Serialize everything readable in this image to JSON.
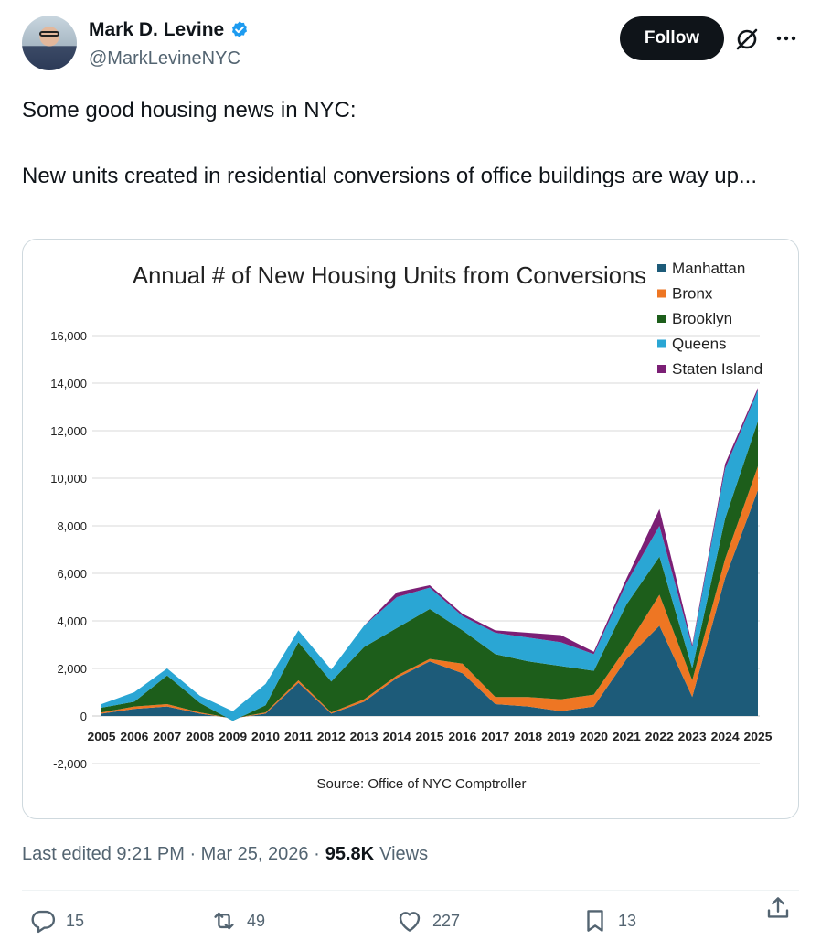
{
  "author": {
    "display_name": "Mark D. Levine",
    "handle": "@MarkLevineNYC",
    "verified": true,
    "verified_color": "#1d9bf0"
  },
  "header": {
    "follow_label": "Follow"
  },
  "tweet": {
    "line1": "Some good housing news in NYC:",
    "line2": "New units created in residential conversions of office buildings are way up..."
  },
  "meta": {
    "edited_label": "Last edited 9:21 PM · Mar 25, 2026 ·",
    "views_count": "95.8K",
    "views_label": "Views"
  },
  "actions": {
    "replies": "15",
    "reposts": "49",
    "likes": "227",
    "bookmarks": "13"
  },
  "chart_data": {
    "type": "area",
    "stacked": true,
    "title": "Annual # of New Housing Units from Conversions",
    "source": "Source: Office of NYC Comptroller",
    "xlabel": "",
    "ylabel": "",
    "ylim": [
      -2000,
      16000
    ],
    "yticks": [
      "16,000",
      "14,000",
      "12,000",
      "10,000",
      "8,000",
      "6,000",
      "4,000",
      "2,000",
      "0",
      "-2,000"
    ],
    "ytick_values": [
      16000,
      14000,
      12000,
      10000,
      8000,
      6000,
      4000,
      2000,
      0,
      -2000
    ],
    "grid": true,
    "legend_position": "top-right",
    "categories": [
      "2005",
      "2006",
      "2007",
      "2008",
      "2009",
      "2010",
      "2011",
      "2012",
      "2013",
      "2014",
      "2015",
      "2016",
      "2017",
      "2018",
      "2019",
      "2020",
      "2021",
      "2022",
      "2023",
      "2024",
      "2025"
    ],
    "series": [
      {
        "name": "Manhattan",
        "color": "#1d5b79",
        "values": [
          100,
          300,
          400,
          100,
          -100,
          100,
          1400,
          100,
          600,
          1600,
          2300,
          1800,
          500,
          400,
          200,
          400,
          2400,
          3800,
          800,
          5800,
          9500
        ]
      },
      {
        "name": "Bronx",
        "color": "#ee7623",
        "values": [
          50,
          100,
          100,
          50,
          0,
          50,
          100,
          50,
          100,
          100,
          100,
          400,
          300,
          400,
          500,
          500,
          500,
          1300,
          700,
          800,
          1000
        ]
      },
      {
        "name": "Brooklyn",
        "color": "#1d5e1b",
        "values": [
          200,
          200,
          1200,
          400,
          -100,
          300,
          1600,
          1300,
          2200,
          2000,
          2100,
          1400,
          1800,
          1500,
          1400,
          1000,
          1800,
          1600,
          500,
          1700,
          1900
        ]
      },
      {
        "name": "Queens",
        "color": "#2aa6d4",
        "values": [
          150,
          400,
          300,
          300,
          400,
          900,
          500,
          500,
          900,
          1300,
          900,
          600,
          900,
          1000,
          1000,
          700,
          900,
          1300,
          900,
          2100,
          1300
        ]
      },
      {
        "name": "Staten Island",
        "color": "#7b1f75",
        "values": [
          0,
          0,
          0,
          0,
          0,
          0,
          0,
          0,
          0,
          200,
          100,
          100,
          100,
          200,
          300,
          100,
          200,
          700,
          100,
          200,
          100
        ]
      }
    ]
  }
}
